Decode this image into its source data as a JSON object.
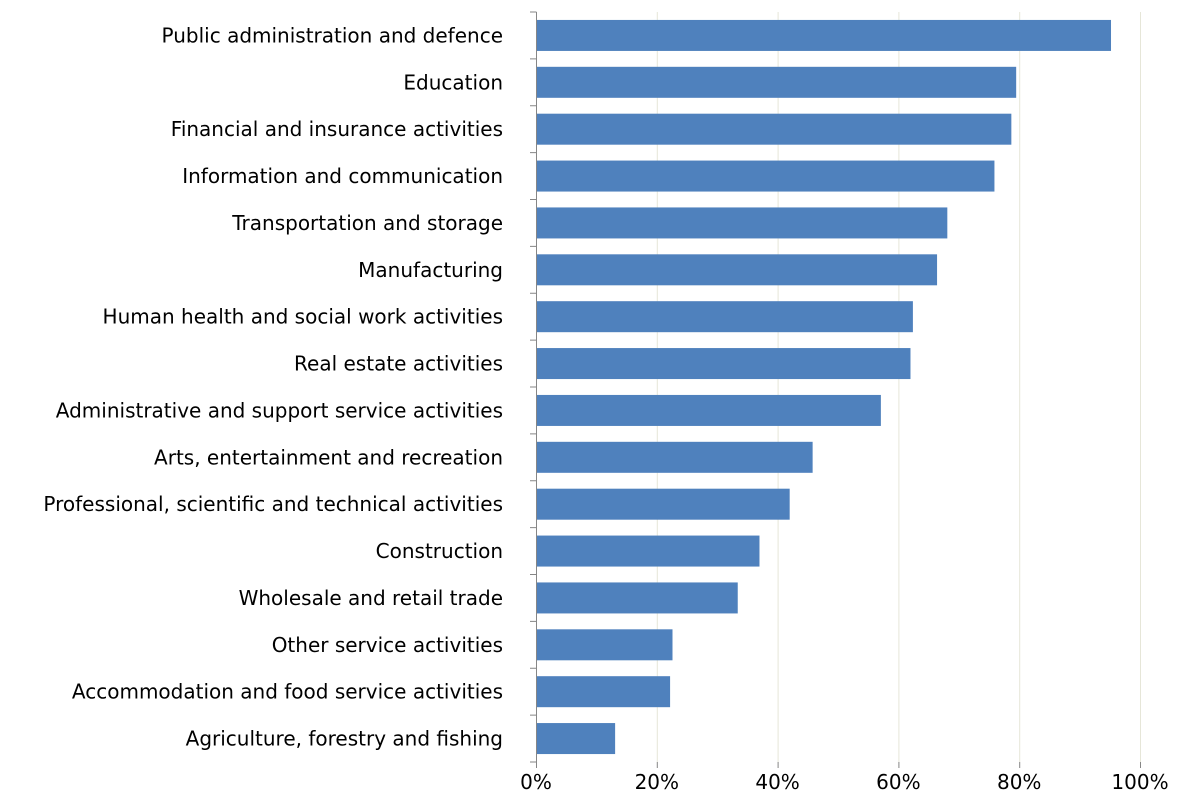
{
  "chart_data": {
    "type": "bar",
    "orientation": "horizontal",
    "categories": [
      "Public administration and defence",
      "Education",
      "Financial and insurance activities",
      "Information and communication",
      "Transportation and storage",
      "Manufacturing",
      "Human health and social work activities",
      "Real estate activities",
      "Administrative and support service activities",
      "Arts, entertainment and recreation",
      "Professional, scientific and technical activities",
      "Construction",
      "Wholesale and retail trade",
      "Other service activities",
      "Accommodation and food service activities",
      "Agriculture, forestry and fishing"
    ],
    "values": [
      95.2,
      79.5,
      78.7,
      75.9,
      68.1,
      66.4,
      62.4,
      62.0,
      57.1,
      45.8,
      42.0,
      37.0,
      33.4,
      22.6,
      22.2,
      13.1
    ],
    "xlim": [
      0,
      100
    ],
    "ticks": [
      0,
      20,
      40,
      60,
      80,
      100
    ],
    "tick_labels": [
      "0%",
      "20%",
      "40%",
      "60%",
      "80%",
      "100%"
    ],
    "title": "",
    "xlabel": "",
    "ylabel": "",
    "grid": "vertical",
    "legend": "none",
    "bar_color": "#4f81bd",
    "grid_color": "#e6e6d8",
    "axis_color": "#868686"
  }
}
